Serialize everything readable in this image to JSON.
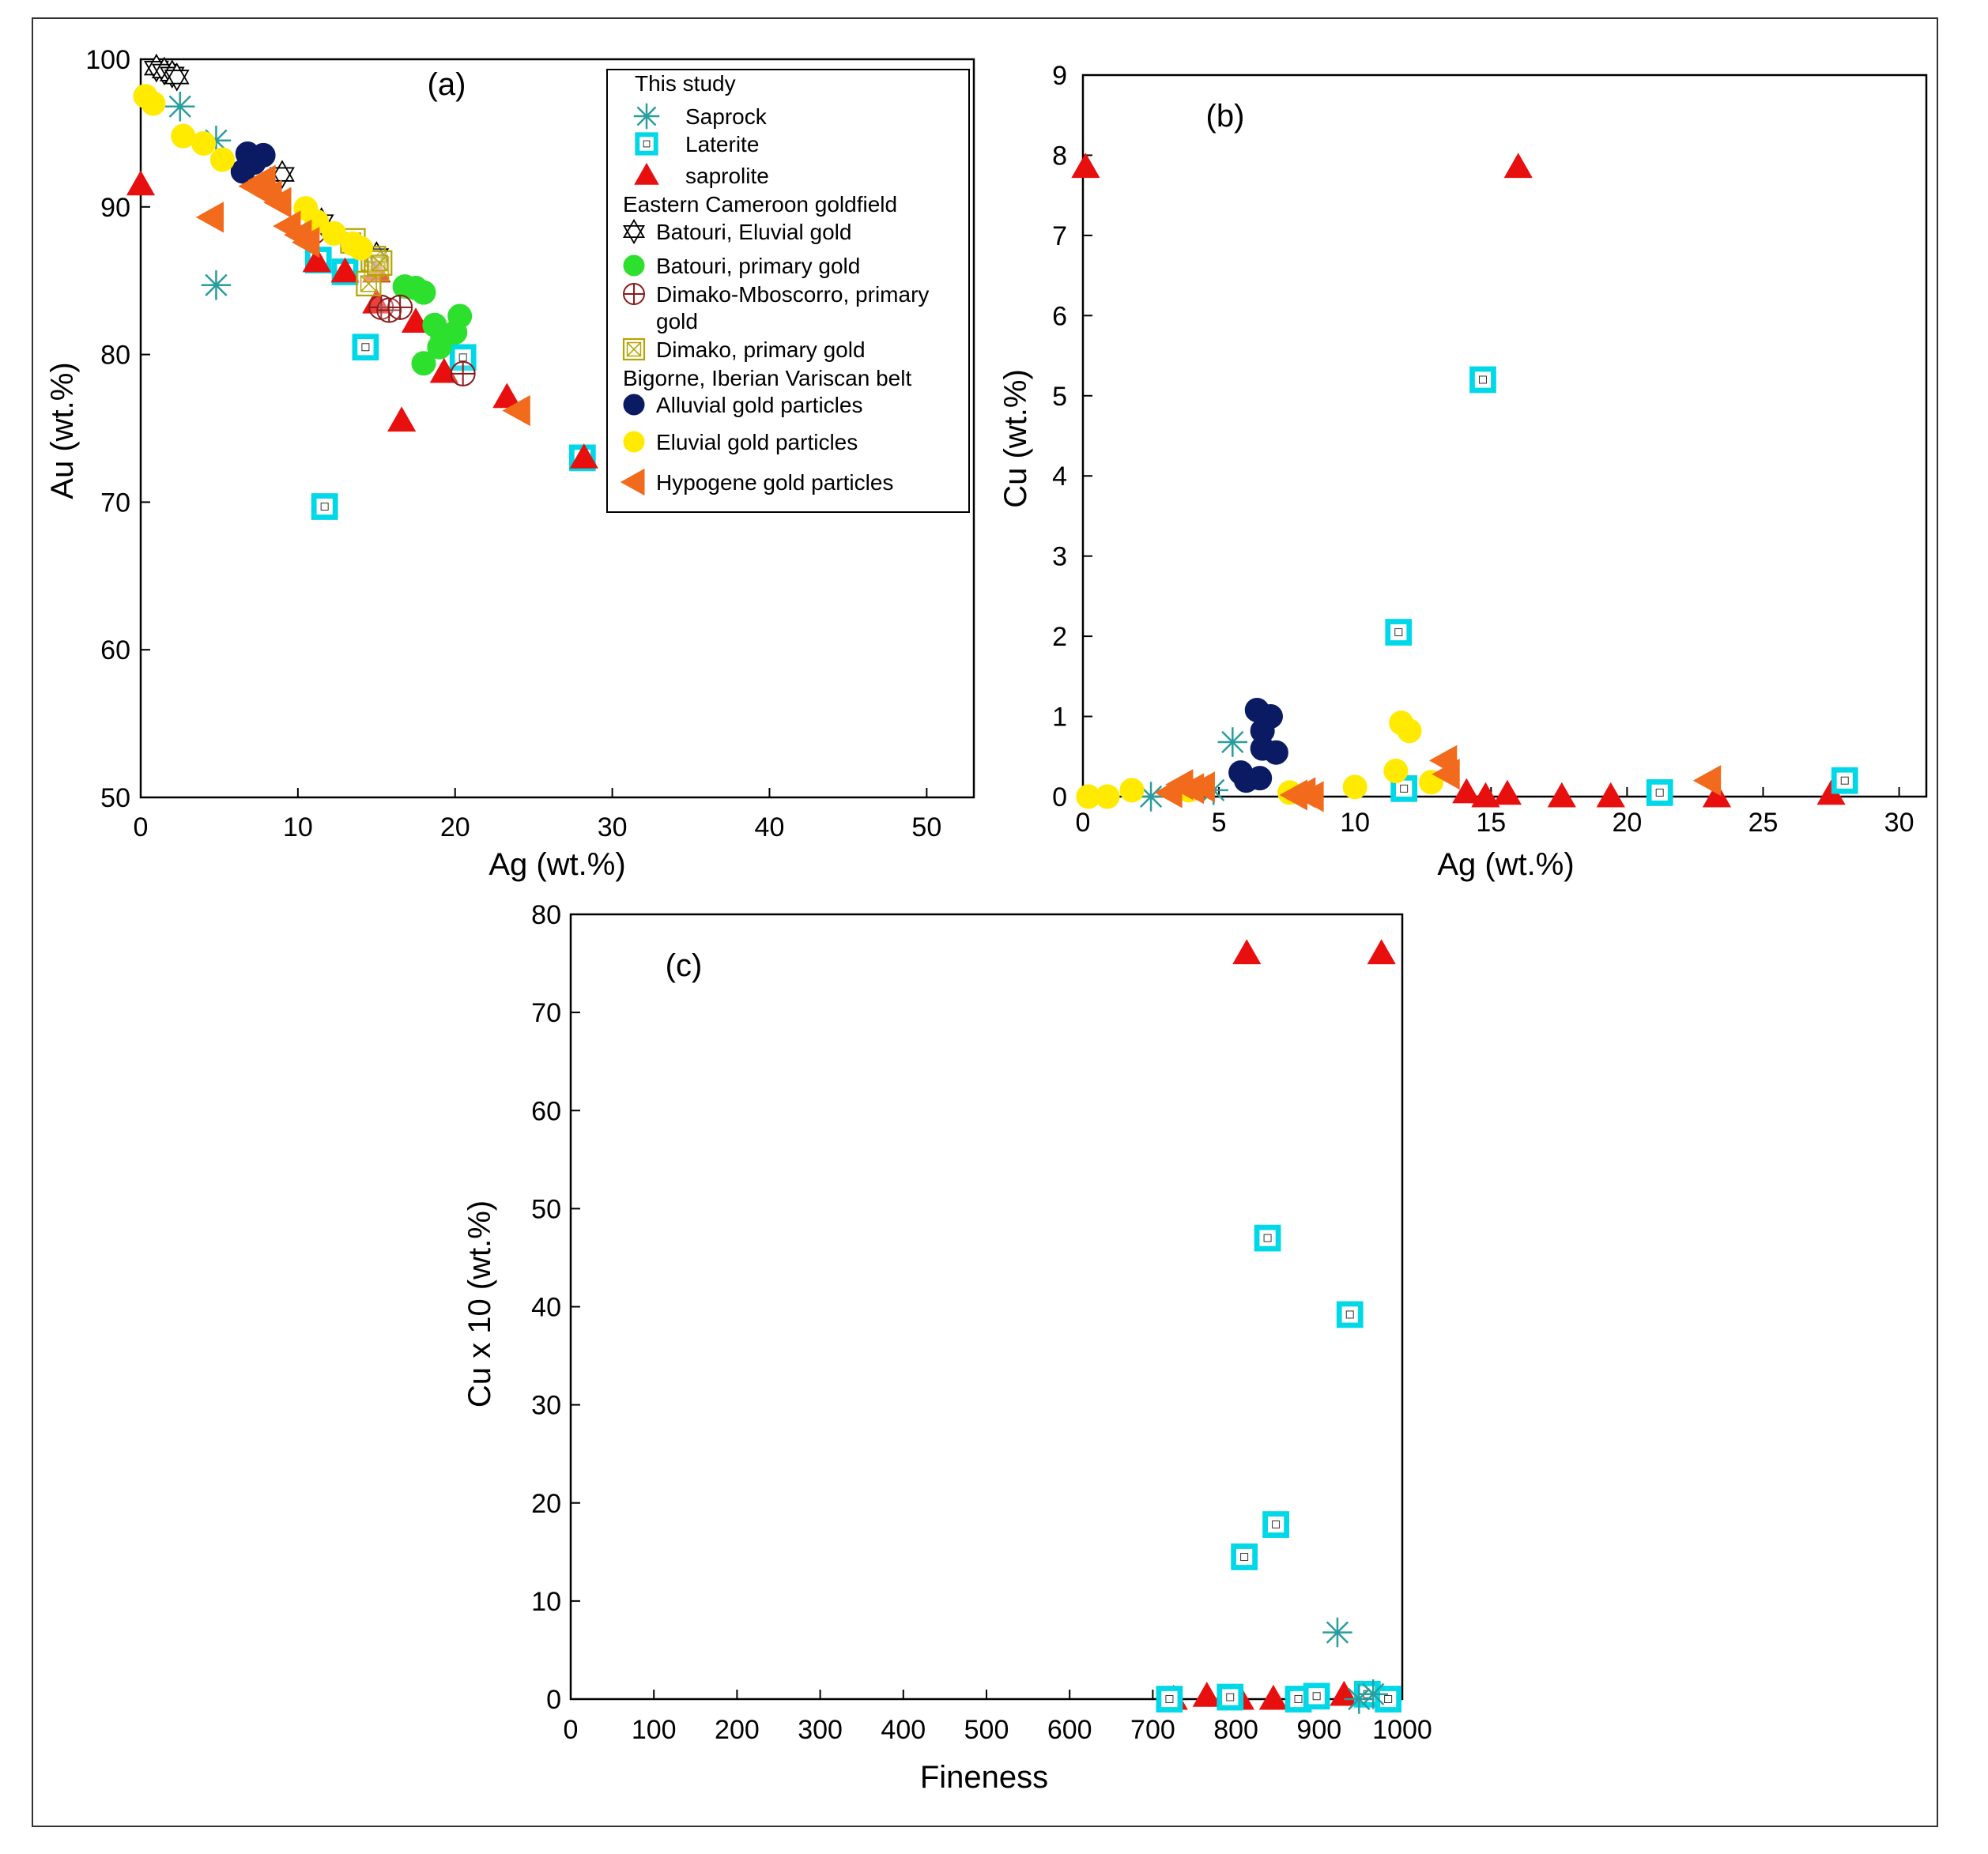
{
  "colors": {
    "saprock": "#2a9d9e",
    "laterite": "#00d8e8",
    "saprolite": "#e8100e",
    "batouri_primary": "#2ee02e",
    "dimako_mboscorro": "#8b1a1a",
    "dimako_primary": "#b5a300",
    "alluvial": "#0b1b63",
    "eluvial": "#ffea00",
    "hypogene": "#f26a1b",
    "axis": "#000000"
  },
  "chart_data": [
    {
      "id": "a",
      "type": "scatter",
      "panel_label": "(a)",
      "xlabel": "Ag (wt.%)",
      "ylabel": "Au (wt.%)",
      "xlim": [
        0,
        53
      ],
      "ylim": [
        50,
        100
      ],
      "xticks": [
        0,
        10,
        20,
        30,
        40,
        50
      ],
      "yticks": [
        50,
        60,
        70,
        80,
        90,
        100
      ],
      "xtick_labels": [
        "0",
        "10",
        "20",
        "30",
        "40",
        "50"
      ],
      "ytick_labels": [
        "50",
        "60",
        "70",
        "80",
        "90",
        "100"
      ],
      "legend": {
        "position": "top-right",
        "entries": [
          {
            "kind": "header",
            "label": "This study"
          },
          {
            "kind": "item",
            "series": "saprock",
            "label": "Saprock"
          },
          {
            "kind": "item",
            "series": "laterite",
            "label": "Laterite"
          },
          {
            "kind": "item",
            "series": "saprolite",
            "label": "saprolite"
          },
          {
            "kind": "header",
            "label": "Eastern Cameroon goldfield"
          },
          {
            "kind": "item",
            "series": "batouri_eluvial",
            "label": "Batouri, Eluvial gold"
          },
          {
            "kind": "item",
            "series": "batouri_primary",
            "label": "Batouri, primary gold"
          },
          {
            "kind": "item",
            "series": "dimako_mboscorro",
            "label": "Dimako-Mboscorro, primary",
            "label2": "gold"
          },
          {
            "kind": "item",
            "series": "dimako_primary",
            "label": "Dimako, primary gold"
          },
          {
            "kind": "header",
            "label": "Bigorne, Iberian Variscan belt"
          },
          {
            "kind": "item",
            "series": "alluvial",
            "label": "Alluvial gold particles"
          },
          {
            "kind": "item",
            "series": "eluvial",
            "label": "Eluvial gold particles"
          },
          {
            "kind": "item",
            "series": "hypogene",
            "label": "Hypogene gold particles"
          }
        ]
      },
      "series": [
        {
          "name": "saprock",
          "marker": "asterisk",
          "points": [
            [
              2.5,
              96.8
            ],
            [
              4.8,
              94.5
            ],
            [
              4.8,
              84.7
            ]
          ]
        },
        {
          "name": "laterite",
          "marker": "square",
          "points": [
            [
              11.3,
              86.4
            ],
            [
              13.0,
              85.6
            ],
            [
              14.3,
              80.5
            ],
            [
              20.5,
              79.8
            ],
            [
              11.7,
              69.7
            ],
            [
              28.1,
              73.0
            ]
          ]
        },
        {
          "name": "saprolite",
          "marker": "triangle",
          "points": [
            [
              0.0,
              91.5
            ],
            [
              11.2,
              86.3
            ],
            [
              13.0,
              85.6
            ],
            [
              15.0,
              85.6
            ],
            [
              15.0,
              83.5
            ],
            [
              17.5,
              82.2
            ],
            [
              16.6,
              75.5
            ],
            [
              19.3,
              78.8
            ],
            [
              23.3,
              77.1
            ],
            [
              28.2,
              73.0
            ]
          ]
        },
        {
          "name": "batouri_eluvial",
          "marker": "star",
          "points": [
            [
              1.0,
              99.4
            ],
            [
              1.5,
              99.2
            ],
            [
              2.0,
              99.0
            ],
            [
              2.3,
              98.8
            ],
            [
              9.0,
              92.2
            ],
            [
              11.5,
              89.0
            ],
            [
              15.0,
              86.7
            ]
          ]
        },
        {
          "name": "batouri_primary",
          "marker": "circle",
          "points": [
            [
              16.8,
              84.6
            ],
            [
              17.5,
              84.5
            ],
            [
              18.0,
              84.2
            ],
            [
              18.7,
              82.0
            ],
            [
              19.0,
              80.5
            ],
            [
              19.2,
              81.2
            ],
            [
              18.0,
              79.4
            ],
            [
              20.3,
              82.6
            ],
            [
              20.0,
              81.5
            ]
          ]
        },
        {
          "name": "dimako_mboscorro",
          "marker": "circle-plus",
          "points": [
            [
              11.0,
              88.3
            ],
            [
              15.3,
              83.2
            ],
            [
              15.8,
              83.0
            ],
            [
              16.5,
              83.2
            ],
            [
              20.5,
              78.7
            ]
          ]
        },
        {
          "name": "dimako_primary",
          "marker": "square-x",
          "points": [
            [
              13.5,
              87.7
            ],
            [
              14.8,
              86.5
            ],
            [
              15.0,
              85.8
            ],
            [
              14.5,
              84.8
            ],
            [
              15.2,
              86.2
            ]
          ]
        },
        {
          "name": "alluvial",
          "marker": "circle",
          "points": [
            [
              6.5,
              92.4
            ],
            [
              7.2,
              93.0
            ],
            [
              7.8,
              93.5
            ],
            [
              6.8,
              93.6
            ]
          ]
        },
        {
          "name": "eluvial",
          "marker": "circle",
          "points": [
            [
              0.3,
              97.5
            ],
            [
              0.8,
              97.0
            ],
            [
              2.7,
              94.8
            ],
            [
              4.0,
              94.3
            ],
            [
              5.2,
              93.2
            ],
            [
              10.5,
              89.9
            ],
            [
              11.2,
              89.0
            ],
            [
              12.3,
              88.2
            ],
            [
              13.5,
              87.5
            ],
            [
              14.0,
              87.2
            ]
          ]
        },
        {
          "name": "hypogene",
          "marker": "triangle-left",
          "points": [
            [
              4.5,
              89.3
            ],
            [
              7.2,
              91.4
            ],
            [
              7.8,
              91.8
            ],
            [
              8.2,
              90.8
            ],
            [
              8.8,
              90.3
            ],
            [
              9.4,
              88.7
            ],
            [
              10.1,
              88.1
            ],
            [
              10.6,
              87.6
            ],
            [
              24.0,
              76.2
            ]
          ]
        }
      ]
    },
    {
      "id": "b",
      "type": "scatter",
      "panel_label": "(b)",
      "xlabel": "Ag (wt.%)",
      "ylabel": "Cu (wt.%)",
      "xlim": [
        0,
        31
      ],
      "ylim": [
        0,
        9
      ],
      "xticks": [
        0,
        5,
        10,
        15,
        20,
        25,
        30
      ],
      "yticks": [
        0,
        1,
        2,
        3,
        4,
        5,
        6,
        7,
        8,
        9
      ],
      "xtick_labels": [
        "0",
        "5",
        "10",
        "15",
        "20",
        "25",
        "30"
      ],
      "ytick_labels": [
        "0",
        "1",
        "2",
        "3",
        "4",
        "5",
        "6",
        "7",
        "8",
        "9"
      ],
      "series": [
        {
          "name": "saprolite",
          "marker": "triangle",
          "points": [
            [
              0.1,
              7.85
            ],
            [
              16.0,
              7.85
            ],
            [
              14.1,
              0.05
            ],
            [
              14.8,
              0.0
            ],
            [
              15.6,
              0.03
            ],
            [
              17.6,
              0.0
            ],
            [
              19.4,
              0.0
            ],
            [
              23.3,
              0.0
            ],
            [
              27.5,
              0.03
            ]
          ]
        },
        {
          "name": "laterite",
          "marker": "square",
          "points": [
            [
              11.6,
              2.05
            ],
            [
              14.7,
              5.2
            ],
            [
              11.8,
              0.1
            ],
            [
              21.2,
              0.05
            ],
            [
              28.0,
              0.2
            ]
          ]
        },
        {
          "name": "saprock",
          "marker": "asterisk",
          "points": [
            [
              2.5,
              0.0
            ],
            [
              4.8,
              0.08
            ],
            [
              5.5,
              0.68
            ]
          ]
        },
        {
          "name": "alluvial",
          "marker": "circle",
          "points": [
            [
              6.4,
              1.08
            ],
            [
              6.9,
              1.0
            ],
            [
              6.6,
              0.82
            ],
            [
              6.6,
              0.6
            ],
            [
              7.1,
              0.55
            ],
            [
              5.8,
              0.3
            ],
            [
              6.0,
              0.2
            ],
            [
              6.5,
              0.23
            ]
          ]
        },
        {
          "name": "eluvial",
          "marker": "circle",
          "points": [
            [
              0.2,
              0.0
            ],
            [
              0.9,
              0.0
            ],
            [
              1.8,
              0.08
            ],
            [
              3.9,
              0.08
            ],
            [
              7.6,
              0.05
            ],
            [
              10.0,
              0.12
            ],
            [
              11.7,
              0.92
            ],
            [
              12.0,
              0.82
            ],
            [
              11.5,
              0.32
            ],
            [
              12.8,
              0.18
            ]
          ]
        },
        {
          "name": "hypogene",
          "marker": "triangle-left",
          "points": [
            [
              3.2,
              0.05
            ],
            [
              3.6,
              0.15
            ],
            [
              4.0,
              0.1
            ],
            [
              4.4,
              0.12
            ],
            [
              7.8,
              0.02
            ],
            [
              8.1,
              0.05
            ],
            [
              8.4,
              0.0
            ],
            [
              13.3,
              0.45
            ],
            [
              13.4,
              0.28
            ],
            [
              23.0,
              0.2
            ]
          ]
        }
      ]
    },
    {
      "id": "c",
      "type": "scatter",
      "panel_label": "(c)",
      "xlabel": "Fineness",
      "ylabel": "Cu x 10 (wt.%)",
      "xlim": [
        0,
        1000
      ],
      "ylim": [
        0,
        80
      ],
      "xticks": [
        0,
        100,
        200,
        300,
        400,
        500,
        600,
        700,
        800,
        900,
        1000
      ],
      "yticks": [
        0,
        10,
        20,
        30,
        40,
        50,
        60,
        70,
        80
      ],
      "xtick_labels": [
        "0",
        "100",
        "200",
        "300",
        "400",
        "500",
        "600",
        "700",
        "800",
        "900",
        "1000"
      ],
      "ytick_labels": [
        "0",
        "10",
        "20",
        "30",
        "40",
        "50",
        "60",
        "70",
        "80"
      ],
      "series": [
        {
          "name": "saprolite",
          "marker": "triangle",
          "points": [
            [
              813,
              76
            ],
            [
              975,
              76
            ],
            [
              725,
              0.0
            ],
            [
              765,
              0.3
            ],
            [
              795,
              0.0
            ],
            [
              805,
              0.0
            ],
            [
              845,
              0.0
            ],
            [
              930,
              0.4
            ]
          ]
        },
        {
          "name": "laterite",
          "marker": "square",
          "points": [
            [
              838,
              47
            ],
            [
              937,
              39.2
            ],
            [
              810,
              14.5
            ],
            [
              848,
              17.8
            ],
            [
              720,
              0.0
            ],
            [
              793,
              0.2
            ],
            [
              875,
              0.0
            ],
            [
              897,
              0.3
            ],
            [
              958,
              0.5
            ],
            [
              983,
              0.0
            ]
          ]
        },
        {
          "name": "saprock",
          "marker": "asterisk",
          "points": [
            [
              922,
              6.8
            ],
            [
              948,
              0.0
            ],
            [
              965,
              0.5
            ]
          ]
        }
      ]
    }
  ]
}
